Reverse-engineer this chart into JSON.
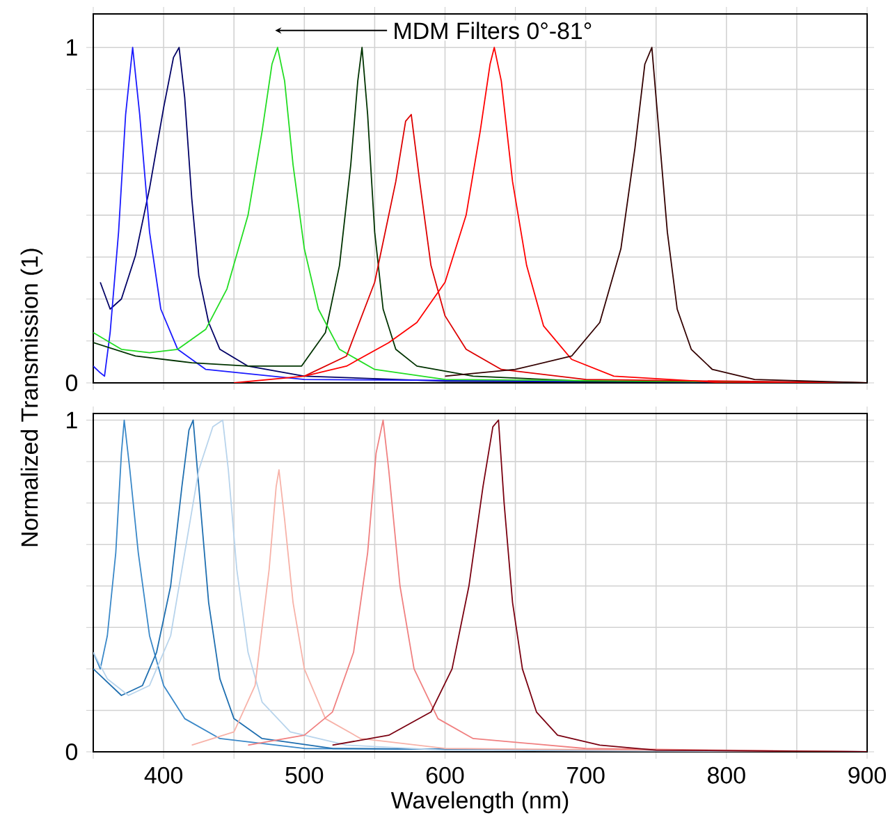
{
  "chart_data": [
    {
      "type": "line",
      "ylabel": "Normalized Transmission (1)",
      "annotations": [
        "MDM Filters 0°-81°"
      ],
      "xlim": [
        350,
        900
      ],
      "ylim": [
        0,
        1.1
      ],
      "xticks": [
        {
          "value": 350,
          "label": null
        },
        {
          "value": 400,
          "label": null
        },
        {
          "value": 450,
          "label": null
        },
        {
          "value": 500,
          "label": null
        },
        {
          "value": 550,
          "label": null
        },
        {
          "value": 600,
          "label": null
        },
        {
          "value": 650,
          "label": null
        },
        {
          "value": 700,
          "label": null
        },
        {
          "value": 750,
          "label": null
        },
        {
          "value": 800,
          "label": null
        },
        {
          "value": 850,
          "label": null
        },
        {
          "value": 900,
          "label": null
        }
      ],
      "yticks": [
        0,
        {
          "value": 0.125,
          "label": null
        },
        {
          "value": 0.25,
          "label": null
        },
        {
          "value": 0.375,
          "label": null
        },
        {
          "value": 0.5,
          "label": null
        },
        {
          "value": 0.625,
          "label": null
        },
        {
          "value": 0.75,
          "label": null
        },
        {
          "value": 0.875,
          "label": null
        },
        1
      ],
      "tick_labels": "y",
      "grid": true,
      "marker": "none",
      "line_style": "solid",
      "series": [
        {
          "color": "#000066",
          "x": [
            355,
            362,
            370,
            380,
            390,
            400,
            407,
            411,
            415,
            420,
            425,
            432,
            440,
            460,
            500,
            600,
            900
          ],
          "values": [
            0.3,
            0.22,
            0.25,
            0.38,
            0.58,
            0.82,
            0.97,
            1.0,
            0.85,
            0.55,
            0.32,
            0.18,
            0.1,
            0.05,
            0.02,
            0.005,
            0
          ]
        },
        {
          "color": "#1a1aff",
          "x": [
            350,
            355,
            358,
            362,
            368,
            373,
            378,
            383,
            390,
            398,
            410,
            430,
            500,
            900
          ],
          "values": [
            0.05,
            0.03,
            0.02,
            0.15,
            0.45,
            0.8,
            1.0,
            0.8,
            0.45,
            0.22,
            0.1,
            0.04,
            0.01,
            0
          ]
        },
        {
          "color": "#003300",
          "x": [
            350,
            380,
            420,
            460,
            498,
            515,
            525,
            533,
            538,
            541,
            545,
            550,
            556,
            565,
            580,
            620,
            700,
            900
          ],
          "values": [
            0.12,
            0.08,
            0.06,
            0.05,
            0.05,
            0.15,
            0.35,
            0.65,
            0.9,
            1.0,
            0.8,
            0.45,
            0.22,
            0.1,
            0.05,
            0.02,
            0.005,
            0
          ]
        },
        {
          "color": "#22dd22",
          "x": [
            350,
            370,
            390,
            410,
            430,
            445,
            460,
            470,
            477,
            481,
            486,
            492,
            500,
            510,
            525,
            550,
            600,
            900
          ],
          "values": [
            0.15,
            0.1,
            0.09,
            0.1,
            0.16,
            0.28,
            0.5,
            0.75,
            0.95,
            1.0,
            0.9,
            0.65,
            0.4,
            0.22,
            0.1,
            0.04,
            0.01,
            0
          ]
        },
        {
          "color": "#dd0000",
          "x": [
            500,
            530,
            550,
            565,
            572,
            576,
            582,
            590,
            600,
            615,
            640,
            700,
            900
          ],
          "values": [
            0.02,
            0.08,
            0.3,
            0.6,
            0.78,
            0.8,
            0.6,
            0.35,
            0.2,
            0.1,
            0.04,
            0.01,
            0
          ]
        },
        {
          "color": "#ff0000",
          "x": [
            450,
            500,
            530,
            560,
            580,
            600,
            615,
            625,
            632,
            635,
            640,
            648,
            658,
            670,
            690,
            720,
            800,
            900
          ],
          "values": [
            0,
            0.02,
            0.05,
            0.12,
            0.18,
            0.3,
            0.5,
            0.75,
            0.95,
            1.0,
            0.9,
            0.6,
            0.35,
            0.17,
            0.07,
            0.02,
            0,
            0
          ]
        },
        {
          "color": "#330000",
          "x": [
            600,
            650,
            690,
            710,
            725,
            735,
            742,
            747,
            752,
            758,
            765,
            775,
            790,
            820,
            900
          ],
          "values": [
            0.02,
            0.04,
            0.08,
            0.18,
            0.4,
            0.7,
            0.95,
            1.0,
            0.75,
            0.45,
            0.22,
            0.1,
            0.04,
            0.01,
            0
          ]
        }
      ]
    },
    {
      "type": "line",
      "xlabel": "Wavelength (nm)",
      "xlim": [
        350,
        900
      ],
      "ylim": [
        0,
        1.02
      ],
      "xticks": [
        {
          "value": 350,
          "label": null
        },
        400,
        {
          "value": 450,
          "label": null
        },
        500,
        {
          "value": 550,
          "label": null
        },
        600,
        {
          "value": 650,
          "label": null
        },
        700,
        {
          "value": 750,
          "label": null
        },
        800,
        {
          "value": 850,
          "label": null
        },
        900
      ],
      "yticks": [
        0,
        {
          "value": 0.125,
          "label": null
        },
        {
          "value": 0.25,
          "label": null
        },
        {
          "value": 0.375,
          "label": null
        },
        {
          "value": 0.5,
          "label": null
        },
        {
          "value": 0.625,
          "label": null
        },
        {
          "value": 0.75,
          "label": null
        },
        {
          "value": 0.875,
          "label": null
        },
        1
      ],
      "grid": true,
      "marker": "none",
      "line_style": "solid",
      "series": [
        {
          "color": "#3a88c8",
          "x": [
            350,
            355,
            360,
            366,
            370,
            372,
            376,
            382,
            390,
            400,
            415,
            440,
            500,
            900
          ],
          "values": [
            0.3,
            0.25,
            0.35,
            0.6,
            0.9,
            1.0,
            0.85,
            0.6,
            0.35,
            0.2,
            0.1,
            0.04,
            0.01,
            0
          ]
        },
        {
          "color": "#1f6fb0",
          "x": [
            350,
            370,
            385,
            395,
            405,
            413,
            418,
            421,
            426,
            432,
            440,
            450,
            470,
            520,
            900
          ],
          "values": [
            0.25,
            0.17,
            0.2,
            0.3,
            0.5,
            0.8,
            0.97,
            1.0,
            0.75,
            0.45,
            0.22,
            0.1,
            0.04,
            0.01,
            0
          ]
        },
        {
          "color": "#b8d4ec",
          "x": [
            350,
            360,
            375,
            390,
            405,
            415,
            425,
            435,
            442,
            446,
            452,
            460,
            470,
            490,
            530,
            600,
            900
          ],
          "values": [
            0.3,
            0.22,
            0.17,
            0.2,
            0.35,
            0.6,
            0.85,
            0.98,
            1.0,
            0.85,
            0.55,
            0.3,
            0.15,
            0.06,
            0.02,
            0.005,
            0
          ]
        },
        {
          "color": "#f7b2a8",
          "x": [
            420,
            450,
            465,
            475,
            480,
            482,
            486,
            492,
            500,
            515,
            540,
            600,
            900
          ],
          "values": [
            0.02,
            0.06,
            0.2,
            0.55,
            0.8,
            0.85,
            0.7,
            0.45,
            0.25,
            0.1,
            0.04,
            0.01,
            0
          ]
        },
        {
          "color": "#f08080",
          "x": [
            460,
            500,
            520,
            535,
            545,
            551,
            556,
            560,
            568,
            578,
            595,
            620,
            700,
            900
          ],
          "values": [
            0.02,
            0.05,
            0.12,
            0.3,
            0.6,
            0.9,
            1.0,
            0.85,
            0.5,
            0.25,
            0.1,
            0.04,
            0.01,
            0
          ]
        },
        {
          "color": "#7a0010",
          "x": [
            520,
            560,
            590,
            605,
            617,
            627,
            634,
            638,
            642,
            648,
            655,
            665,
            680,
            710,
            750,
            900
          ],
          "values": [
            0.02,
            0.05,
            0.12,
            0.25,
            0.5,
            0.8,
            0.98,
            1.0,
            0.75,
            0.45,
            0.25,
            0.12,
            0.05,
            0.02,
            0.005,
            0
          ]
        }
      ]
    }
  ]
}
